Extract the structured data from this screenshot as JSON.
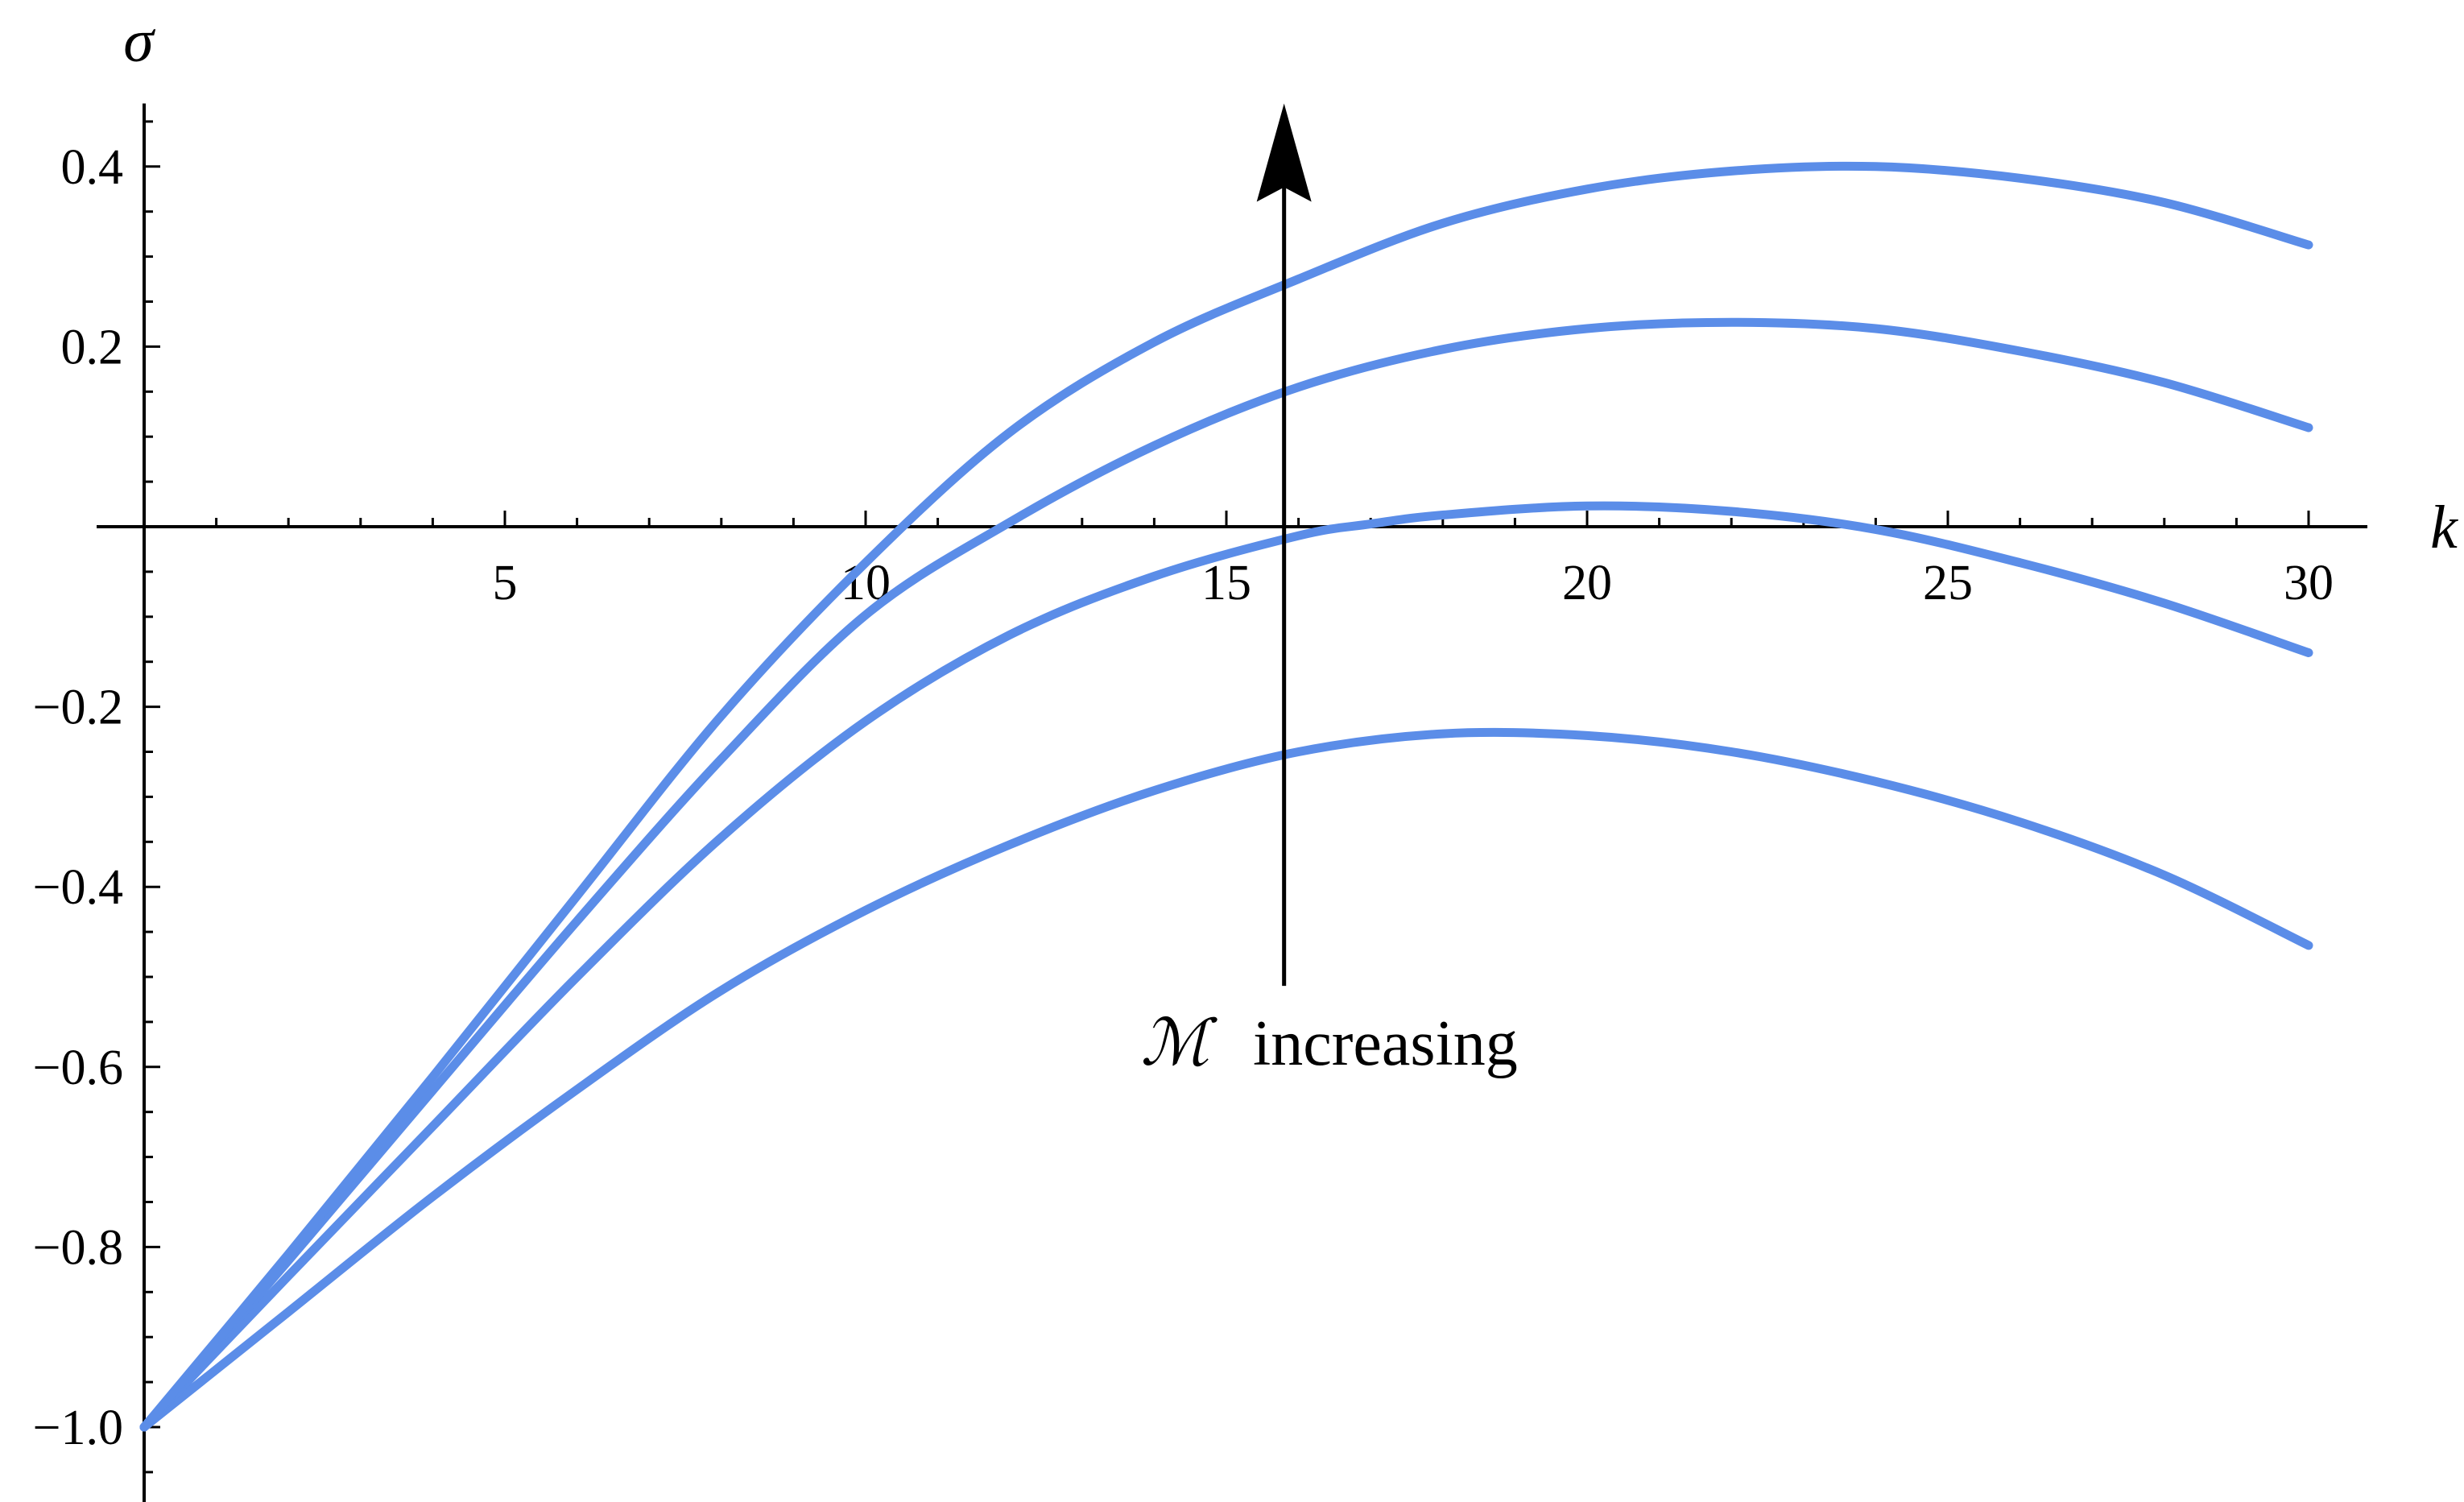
{
  "chart_data": {
    "type": "line",
    "title": "",
    "xlabel": "k",
    "ylabel": "σ",
    "xlim": [
      0,
      30.8
    ],
    "ylim": [
      -1.08,
      0.47
    ],
    "x_ticks": [
      5,
      10,
      15,
      20,
      25,
      30
    ],
    "x_tick_labels": [
      "5",
      "10",
      "15",
      "20",
      "25",
      "30"
    ],
    "y_ticks": [
      -1.0,
      -0.8,
      -0.6,
      -0.4,
      -0.2,
      0.2,
      0.4
    ],
    "y_tick_labels": [
      "−1.0",
      "−0.8",
      "−0.6",
      "−0.4",
      "−0.2",
      "0.2",
      "0.4"
    ],
    "grid": false,
    "legend": "none",
    "annotation": {
      "symbol": "ℳ",
      "text": "increasing",
      "arrow_x": 15.8,
      "arrow_from_y": -0.51,
      "arrow_to_y": 0.47
    },
    "series_color": "#5b8de8",
    "series": [
      {
        "x": [
          0,
          2,
          4,
          6,
          8,
          10,
          12,
          14,
          16,
          18,
          20,
          22,
          24,
          26,
          28,
          30
        ],
        "y": [
          -1.0,
          -0.872,
          -0.744,
          -0.625,
          -0.515,
          -0.426,
          -0.353,
          -0.293,
          -0.25,
          -0.23,
          -0.232,
          -0.25,
          -0.283,
          -0.328,
          -0.387,
          -0.465
        ]
      },
      {
        "x": [
          0,
          2,
          4,
          6,
          8,
          10,
          12,
          14,
          16,
          17,
          18,
          20,
          22,
          24,
          26,
          28,
          30
        ],
        "y": [
          -1.0,
          -0.832,
          -0.666,
          -0.5,
          -0.345,
          -0.216,
          -0.12,
          -0.055,
          -0.01,
          0.003,
          0.013,
          0.023,
          0.017,
          -0.003,
          -0.04,
          -0.085,
          -0.14
        ]
      },
      {
        "x": [
          0,
          2,
          4,
          6,
          8,
          10,
          12,
          14,
          16,
          18,
          20,
          22,
          24,
          26,
          28,
          30
        ],
        "y": [
          -1.0,
          -0.815,
          -0.626,
          -0.438,
          -0.258,
          -0.098,
          0.005,
          0.09,
          0.155,
          0.197,
          0.22,
          0.227,
          0.22,
          0.195,
          0.16,
          0.11
        ]
      },
      {
        "x": [
          0,
          2,
          4,
          6,
          8,
          10,
          12,
          14,
          16,
          18,
          20,
          22,
          24,
          26,
          28,
          30
        ],
        "y": [
          -1.0,
          -0.808,
          -0.611,
          -0.41,
          -0.21,
          -0.04,
          0.105,
          0.205,
          0.275,
          0.337,
          0.375,
          0.395,
          0.4,
          0.387,
          0.36,
          0.313
        ]
      }
    ]
  }
}
